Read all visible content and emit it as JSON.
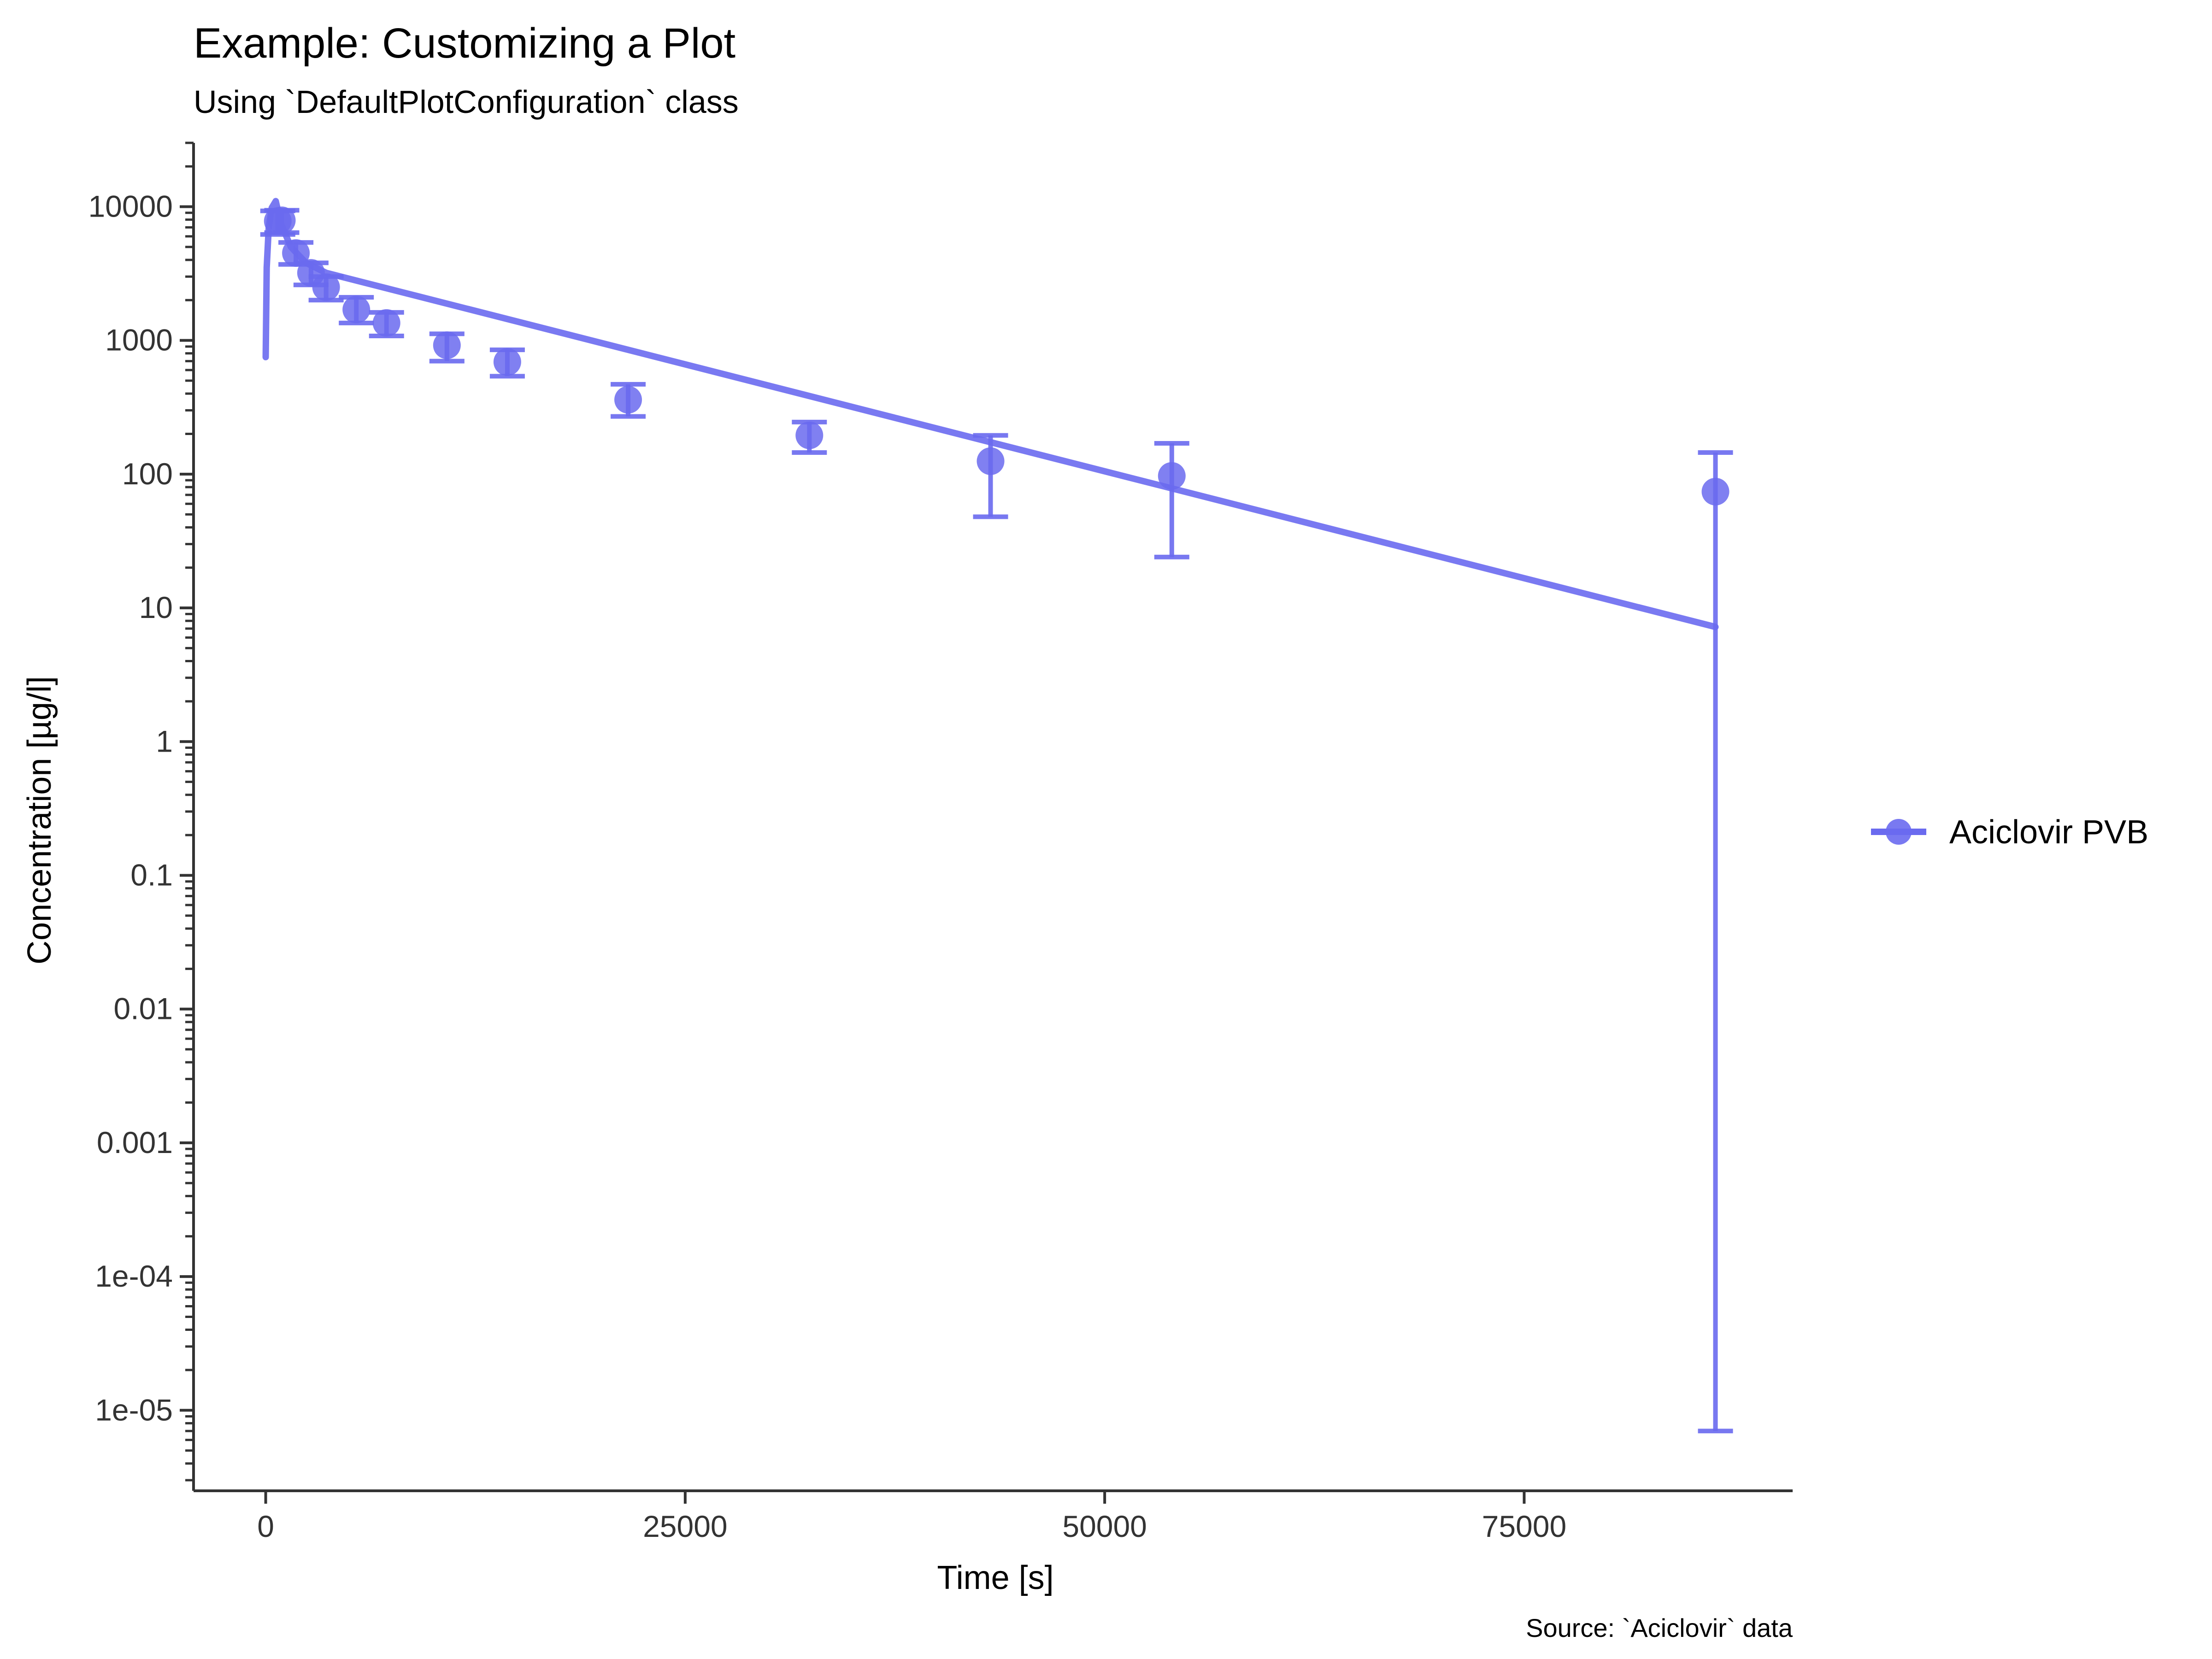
{
  "chart_data": {
    "type": "scatter",
    "title": "Example: Customizing a Plot",
    "subtitle": "Using `DefaultPlotConfiguration` class",
    "caption": "Source: `Aciclovir` data",
    "xlabel": "Time [s]",
    "ylabel": "Concentration [µg/l]",
    "y_scale": "log10",
    "xlim": [
      -4300,
      91000
    ],
    "ylim": [
      2.5e-06,
      30000
    ],
    "x_ticks": [
      0,
      25000,
      50000,
      75000
    ],
    "x_tick_labels": [
      "0",
      "25000",
      "50000",
      "75000"
    ],
    "y_ticks": [
      1e-05,
      0.0001,
      0.001,
      0.01,
      0.1,
      1,
      10,
      100,
      1000,
      10000
    ],
    "y_tick_labels": [
      "1e-05",
      "1e-04",
      "0.001",
      "0.01",
      "0.1",
      "1",
      "10",
      "100",
      "1000",
      "10000"
    ],
    "legend": {
      "position": "right",
      "entries": [
        "Aciclovir PVB"
      ]
    },
    "color": "#6a6aef",
    "series": [
      {
        "name": "Aciclovir PVB",
        "observed": [
          {
            "x": 720,
            "y": 7800,
            "ymin": 6200,
            "ymax": 9300
          },
          {
            "x": 960,
            "y": 7900,
            "ymin": 6400,
            "ymax": 9400
          },
          {
            "x": 1800,
            "y": 4500,
            "ymin": 3700,
            "ymax": 5400
          },
          {
            "x": 2700,
            "y": 3200,
            "ymin": 2600,
            "ymax": 3800
          },
          {
            "x": 3600,
            "y": 2500,
            "ymin": 2000,
            "ymax": 3000
          },
          {
            "x": 5400,
            "y": 1700,
            "ymin": 1350,
            "ymax": 2100
          },
          {
            "x": 7200,
            "y": 1350,
            "ymin": 1080,
            "ymax": 1620
          },
          {
            "x": 10800,
            "y": 920,
            "ymin": 700,
            "ymax": 1120
          },
          {
            "x": 14400,
            "y": 690,
            "ymin": 540,
            "ymax": 850
          },
          {
            "x": 21600,
            "y": 360,
            "ymin": 270,
            "ymax": 470
          },
          {
            "x": 32400,
            "y": 195,
            "ymin": 145,
            "ymax": 245
          },
          {
            "x": 43200,
            "y": 125,
            "ymin": 48,
            "ymax": 195
          },
          {
            "x": 54000,
            "y": 97,
            "ymin": 24,
            "ymax": 170
          },
          {
            "x": 86400,
            "y": 74,
            "ymin": 7e-06,
            "ymax": 145
          }
        ],
        "simulated": [
          {
            "x": 0,
            "y": 750
          },
          {
            "x": 60,
            "y": 3500
          },
          {
            "x": 180,
            "y": 7000
          },
          {
            "x": 360,
            "y": 9800
          },
          {
            "x": 600,
            "y": 11000
          },
          {
            "x": 900,
            "y": 7500
          },
          {
            "x": 1500,
            "y": 5000
          },
          {
            "x": 2400,
            "y": 3800
          },
          {
            "x": 3600,
            "y": 3200
          },
          {
            "x": 86400,
            "y": 7.2
          }
        ]
      }
    ]
  }
}
